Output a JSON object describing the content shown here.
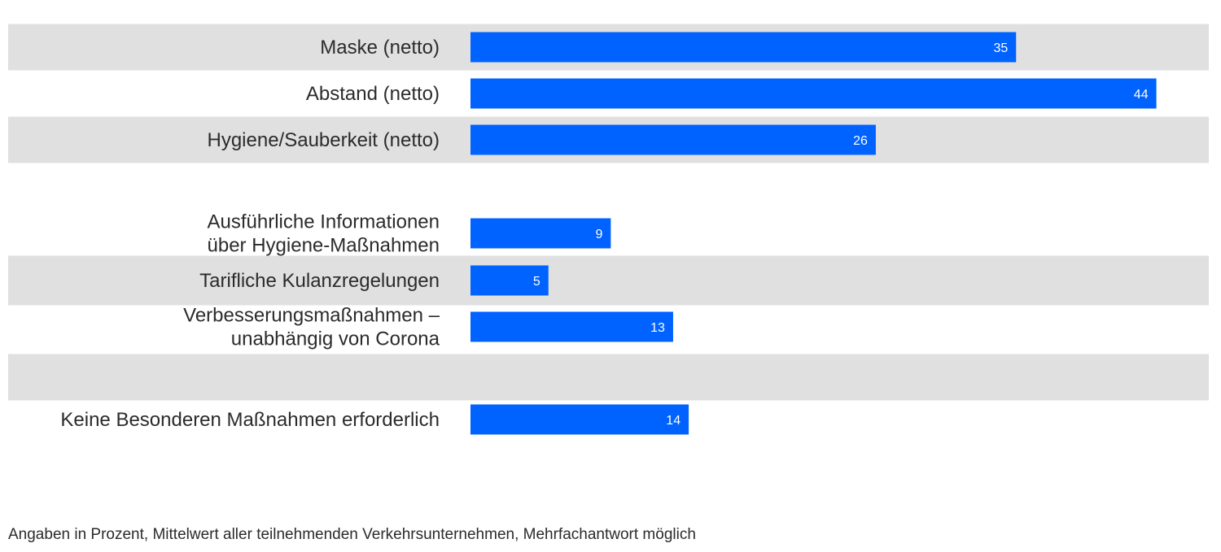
{
  "colors": {
    "bar": "#0062ff",
    "band": "#e0e0e0",
    "label_text": "#2b2b2b",
    "value_text": "#ffffff"
  },
  "chart_data": {
    "type": "bar",
    "orientation": "horizontal",
    "categories": [
      "Maske (netto)",
      "Abstand (netto)",
      "Hygiene/Sauberkeit (netto)",
      "",
      "Ausführliche Informationen über Hygiene-Maßnahmen",
      "Tarifliche Kulanzregelungen",
      "Verbesserungsmaßnahmen – unabhängig von Corona",
      "",
      "Keine Besonderen Maßnahmen erforderlich"
    ],
    "category_lines": [
      [
        "Maske (netto)"
      ],
      [
        "Abstand (netto)"
      ],
      [
        "Hygiene/Sauberkeit (netto)"
      ],
      [],
      [
        "Ausführliche Informationen",
        "über Hygiene-Maßnahmen"
      ],
      [
        "Tarifliche Kulanzregelungen"
      ],
      [
        "Verbesserungsmaßnahmen –",
        "unabhängig von Corona"
      ],
      [],
      [
        "Keine Besonderen Maßnahmen erforderlich"
      ]
    ],
    "values": [
      35,
      44,
      26,
      null,
      9,
      5,
      13,
      null,
      14
    ],
    "value_labels": [
      "35",
      "44",
      "26",
      "",
      "9",
      "5",
      "13",
      "",
      "14"
    ],
    "shaded_rows": [
      true,
      false,
      true,
      false,
      false,
      true,
      false,
      true,
      false
    ],
    "xlim": [
      0,
      46
    ],
    "grid": false,
    "legend": "none",
    "title": "",
    "xlabel": "",
    "ylabel": ""
  },
  "footnote": "Angaben in Prozent, Mittelwert aller teilnehmenden Verkehrsunternehmen, Mehrfachantwort möglich"
}
